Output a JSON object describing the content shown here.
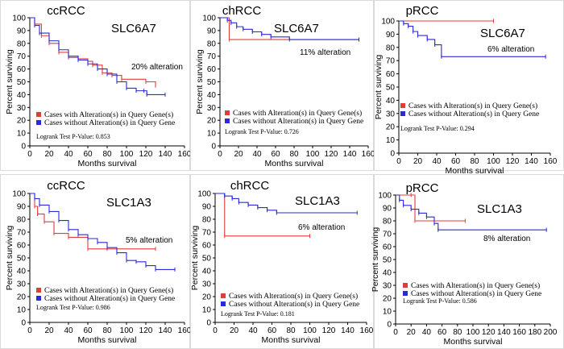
{
  "colors": {
    "altered": "#e03c3c",
    "unaltered": "#2a2ad8"
  },
  "legend": {
    "with_alt": "Cases with Alteration(s) in Query Gene(s)",
    "without_alt": "Cases without Alteration(s) in Query Gene"
  },
  "chart_data": [
    {
      "type": "line",
      "title": "ccRCC",
      "gene": "SLC6A7",
      "xlabel": "Months survival",
      "ylabel": "Percent surviving",
      "xlim": [
        0,
        160
      ],
      "ylim": [
        0,
        100
      ],
      "xticks": [
        "0",
        "20",
        "40",
        "60",
        "80",
        "100",
        "120",
        "140",
        "160"
      ],
      "yticks": [
        "0",
        "10",
        "20",
        "30",
        "40",
        "50",
        "60",
        "70",
        "80",
        "90",
        "100"
      ],
      "annotation": "20% alteration",
      "pvalue": "Logrank Test P-Value: 0.853",
      "series": [
        {
          "role": "altered",
          "x": [
            0,
            5,
            12,
            20,
            30,
            40,
            50,
            60,
            65,
            75,
            85,
            95,
            120,
            130
          ],
          "y": [
            100,
            95,
            86,
            80,
            73,
            69,
            68,
            66,
            63,
            57,
            55,
            52,
            50,
            47
          ]
        },
        {
          "role": "unaltered",
          "x": [
            0,
            5,
            10,
            20,
            30,
            40,
            50,
            60,
            70,
            80,
            90,
            100,
            110,
            118,
            121,
            140
          ],
          "y": [
            100,
            94,
            88,
            82,
            75,
            70,
            67,
            64,
            60,
            56,
            50,
            45,
            43,
            43,
            40,
            40
          ]
        }
      ]
    },
    {
      "type": "line",
      "title": "chRCC",
      "gene": "SLC6A7",
      "xlabel": "Months survival",
      "ylabel": "Percent surviving",
      "xlim": [
        0,
        160
      ],
      "ylim": [
        0,
        100
      ],
      "xticks": [
        "0",
        "20",
        "40",
        "60",
        "80",
        "100",
        "120",
        "140",
        "160"
      ],
      "yticks": [
        "0",
        "10",
        "20",
        "30",
        "40",
        "50",
        "60",
        "70",
        "80",
        "90",
        "100"
      ],
      "annotation": "11% alteration",
      "pvalue": "Logrank Test P-Value: 0.726",
      "series": [
        {
          "role": "altered",
          "x": [
            0,
            10,
            150
          ],
          "y": [
            100,
            83,
            83
          ]
        },
        {
          "role": "unaltered",
          "x": [
            0,
            8,
            12,
            18,
            25,
            35,
            45,
            55,
            75,
            150
          ],
          "y": [
            100,
            98,
            96,
            93,
            91,
            89,
            87,
            85,
            83,
            83
          ]
        }
      ]
    },
    {
      "type": "line",
      "title": "pRCC",
      "gene": "SLC6A7",
      "xlabel": "Months survival",
      "ylabel": "Percent surviving",
      "xlim": [
        0,
        160
      ],
      "ylim": [
        0,
        100
      ],
      "xticks": [
        "0",
        "20",
        "40",
        "60",
        "80",
        "100",
        "120",
        "140",
        "160"
      ],
      "yticks": [
        "0",
        "10",
        "20",
        "30",
        "40",
        "50",
        "60",
        "70",
        "80",
        "90",
        "100"
      ],
      "annotation": "6% alteration",
      "pvalue": "Logrank Test P-Value: 0.294",
      "series": [
        {
          "role": "altered",
          "x": [
            0,
            100
          ],
          "y": [
            100,
            100
          ]
        },
        {
          "role": "unaltered",
          "x": [
            0,
            5,
            10,
            15,
            20,
            30,
            38,
            45,
            155
          ],
          "y": [
            100,
            98,
            96,
            92,
            89,
            86,
            82,
            73,
            73
          ]
        }
      ]
    },
    {
      "type": "line",
      "title": "ccRCC",
      "gene": "SLC1A3",
      "xlabel": "Months survival",
      "ylabel": "Percent surviving",
      "xlim": [
        0,
        160
      ],
      "ylim": [
        0,
        100
      ],
      "xticks": [
        "0",
        "20",
        "40",
        "60",
        "80",
        "100",
        "120",
        "140",
        "160"
      ],
      "yticks": [
        "0",
        "10",
        "20",
        "30",
        "40",
        "50",
        "60",
        "70",
        "80",
        "90",
        "100"
      ],
      "annotation": "5% alteration",
      "pvalue": "Logrank Test P-Value: 0.986",
      "series": [
        {
          "role": "altered",
          "x": [
            0,
            5,
            8,
            15,
            25,
            40,
            60,
            80,
            130
          ],
          "y": [
            100,
            90,
            84,
            78,
            69,
            66,
            57,
            57,
            57
          ]
        },
        {
          "role": "unaltered",
          "x": [
            0,
            5,
            10,
            20,
            30,
            40,
            50,
            60,
            70,
            80,
            90,
            100,
            110,
            120,
            130,
            150
          ],
          "y": [
            100,
            96,
            91,
            86,
            79,
            72,
            68,
            65,
            62,
            58,
            54,
            48,
            47,
            44,
            41,
            41
          ]
        }
      ]
    },
    {
      "type": "line",
      "title": "chRCC",
      "gene": "SLC1A3",
      "xlabel": "Months survival",
      "ylabel": "Percent surviving",
      "xlim": [
        0,
        160
      ],
      "ylim": [
        0,
        100
      ],
      "xticks": [
        "0",
        "20",
        "40",
        "60",
        "80",
        "100",
        "120",
        "140",
        "160"
      ],
      "yticks": [
        "0",
        "10",
        "20",
        "30",
        "40",
        "50",
        "60",
        "70",
        "80",
        "90",
        "100"
      ],
      "annotation": "6% alteration",
      "pvalue": "Logrank Test P-Value: 0.181",
      "series": [
        {
          "role": "altered",
          "x": [
            0,
            10,
            100
          ],
          "y": [
            100,
            67,
            67
          ]
        },
        {
          "role": "unaltered",
          "x": [
            0,
            10,
            18,
            25,
            35,
            45,
            55,
            65,
            150
          ],
          "y": [
            100,
            98,
            96,
            93,
            91,
            89,
            87,
            85,
            85
          ]
        }
      ]
    },
    {
      "type": "line",
      "title": "pRCC",
      "gene": "SLC1A3",
      "xlabel": "Months survival",
      "ylabel": "Percent surviving",
      "xlim": [
        0,
        200
      ],
      "ylim": [
        0,
        100
      ],
      "xticks": [
        "0",
        "20",
        "40",
        "60",
        "80",
        "100",
        "120",
        "140",
        "160",
        "180",
        "200"
      ],
      "yticks": [
        "0",
        "10",
        "20",
        "30",
        "40",
        "50",
        "60",
        "70",
        "80",
        "90",
        "100"
      ],
      "annotation": "8% alteration",
      "pvalue": "Logrank Test P-Value: 0.586",
      "series": [
        {
          "role": "altered",
          "x": [
            0,
            20,
            25,
            50,
            90
          ],
          "y": [
            100,
            100,
            80,
            80,
            80
          ]
        },
        {
          "role": "unaltered",
          "x": [
            0,
            5,
            10,
            20,
            30,
            40,
            50,
            55,
            195
          ],
          "y": [
            100,
            96,
            92,
            89,
            86,
            83,
            78,
            73,
            73
          ]
        }
      ]
    }
  ]
}
